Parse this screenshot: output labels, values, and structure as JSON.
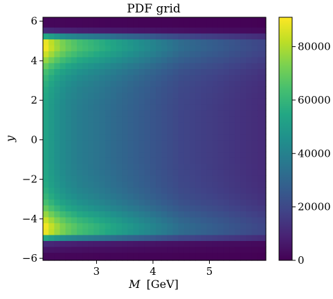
{
  "chart_data": {
    "type": "heatmap",
    "title": "PDF grid",
    "xlabel_var": "M",
    "xlabel_unit": "[GeV]",
    "ylabel": "y",
    "xlim": [
      2.05,
      6.0
    ],
    "ylim": [
      -6.1,
      6.2
    ],
    "x_ticks": [
      3,
      4,
      5
    ],
    "x_tick_labels": [
      "3",
      "4",
      "5"
    ],
    "y_ticks": [
      -6,
      -4,
      -2,
      0,
      2,
      4,
      6
    ],
    "y_tick_labels": [
      "−6",
      "−4",
      "−2",
      "0",
      "2",
      "4",
      "6"
    ],
    "grid": false,
    "colorbar": {
      "min": 0,
      "max": 91000,
      "ticks": [
        0,
        20000,
        40000,
        60000,
        80000
      ],
      "tick_labels": [
        "0",
        "20000",
        "40000",
        "60000",
        "80000"
      ],
      "colormap": "viridis"
    },
    "x_edges": [
      2.05,
      2.15,
      2.25,
      2.35,
      2.45,
      2.55,
      2.65,
      2.75,
      2.85,
      2.95,
      3.05,
      3.15,
      3.25,
      3.35,
      3.45,
      3.55,
      3.65,
      3.75,
      3.85,
      3.95,
      4.05,
      4.15,
      4.25,
      4.35,
      4.45,
      4.55,
      4.65,
      4.75,
      4.85,
      4.95,
      5.05,
      5.15,
      5.25,
      5.35,
      5.45,
      5.55,
      5.65,
      5.75,
      5.85,
      6.0
    ],
    "y_edges": [
      -6.1,
      -5.7,
      -5.4,
      -5.1,
      -4.8,
      -4.5,
      -4.2,
      -3.9,
      -3.6,
      -3.3,
      -3.0,
      -2.7,
      -2.4,
      -2.1,
      -1.8,
      -1.5,
      -1.2,
      -0.9,
      -0.6,
      -0.3,
      0.0,
      0.3,
      0.6,
      0.9,
      1.2,
      1.5,
      1.8,
      2.1,
      2.4,
      2.7,
      3.0,
      3.3,
      3.6,
      3.9,
      4.2,
      4.5,
      4.8,
      5.1,
      5.4,
      5.7,
      6.2
    ],
    "y_profile": [
      0.02,
      0.06,
      0.12,
      0.6,
      0.97,
      0.98,
      0.92,
      0.84,
      0.76,
      0.7,
      0.66,
      0.63,
      0.61,
      0.6,
      0.59,
      0.585,
      0.58,
      0.58,
      0.58,
      0.58,
      0.58,
      0.58,
      0.58,
      0.58,
      0.58,
      0.585,
      0.59,
      0.6,
      0.61,
      0.63,
      0.66,
      0.7,
      0.76,
      0.84,
      0.92,
      0.98,
      0.97,
      0.6,
      0.12,
      0.02
    ],
    "x_profile": [
      1.0,
      0.93,
      0.87,
      0.82,
      0.78,
      0.75,
      0.72,
      0.7,
      0.68,
      0.66,
      0.64,
      0.62,
      0.6,
      0.58,
      0.56,
      0.54,
      0.52,
      0.5,
      0.48,
      0.46,
      0.44,
      0.42,
      0.4,
      0.38,
      0.36,
      0.35,
      0.34,
      0.33,
      0.32,
      0.31,
      0.3,
      0.29,
      0.28,
      0.27,
      0.26,
      0.25,
      0.24,
      0.23,
      0.22
    ],
    "peak_value": 91000
  }
}
